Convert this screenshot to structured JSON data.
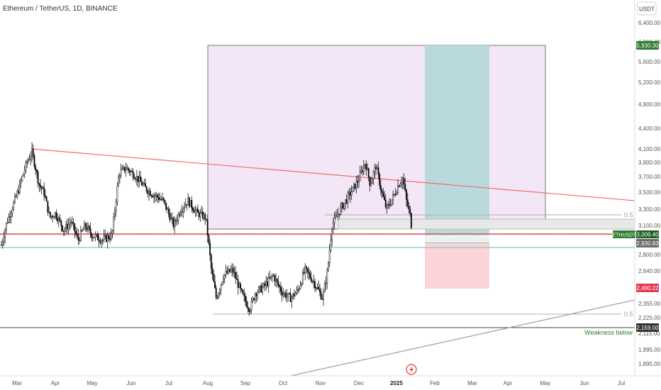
{
  "header": {
    "symbol_title": "Ethereum / TetherUS, 1D, BINANCE"
  },
  "currency_button": "USDT",
  "price_axis": {
    "ticks": [
      "6,400.00",
      "6,000.00",
      "5,600.00",
      "5,200.00",
      "4,800.00",
      "4,400.00",
      "4,100.00",
      "3,900.00",
      "3,700.00",
      "3,500.00",
      "3,300.00",
      "3,100.00",
      "2,800.00",
      "2,640.00",
      "2,355.00",
      "2,225.00",
      "2,115.00",
      "1,995.00",
      "1,895.00"
    ]
  },
  "time_axis": {
    "labels": [
      "Mar",
      "Apr",
      "May",
      "Jun",
      "Jul",
      "Aug",
      "Sep",
      "Oct",
      "Nov",
      "Dec",
      "2025",
      "Feb",
      "Mar",
      "Apr",
      "May",
      "Jun",
      "Jul"
    ]
  },
  "price_badges": {
    "target": "5,930.30",
    "symbol": "ETHUSDT",
    "last": "3,009.40",
    "entry": "2,930.83",
    "stop": "2,490.22",
    "support": "2,159.00"
  },
  "annotations": {
    "fib_upper": "0.5",
    "fib_lower": "0.5",
    "weakness": "Weakness below"
  },
  "colors": {
    "up": "#ffffff",
    "down": "#000000",
    "candle_border": "#1a1a1a",
    "zone_purple": "#f3e6f6",
    "zone_border": "#777777",
    "target_zone": "#b9d9dc",
    "stop_zone": "#fbd3d8",
    "trendline_red": "#f26b6b",
    "level_red": "#e53935",
    "level_teal": "#80cbc4",
    "badge_green": "#2e7d32",
    "badge_red": "#e53950",
    "badge_dark": "#333333",
    "badge_gray": "#6b6b6b"
  },
  "chart_data": {
    "type": "candlestick",
    "title": "Ethereum / TetherUS, 1D, BINANCE",
    "symbol": "ETHUSDT",
    "currency": "USDT",
    "x_range": [
      "2024-02-24",
      "2025-07-31"
    ],
    "y_range": [
      1800,
      6700
    ],
    "monthly_ohlc": [
      {
        "month": "2024-03",
        "open": 3340,
        "high": 4090,
        "low": 3050,
        "close": 3640
      },
      {
        "month": "2024-04",
        "open": 3640,
        "high": 3730,
        "low": 2850,
        "close": 3010
      },
      {
        "month": "2024-05",
        "open": 3010,
        "high": 3950,
        "low": 2820,
        "close": 3760
      },
      {
        "month": "2024-06",
        "open": 3760,
        "high": 3880,
        "low": 3240,
        "close": 3430
      },
      {
        "month": "2024-07",
        "open": 3430,
        "high": 3560,
        "low": 2900,
        "close": 3250
      },
      {
        "month": "2024-08",
        "open": 3250,
        "high": 3470,
        "low": 2120,
        "close": 2520
      },
      {
        "month": "2024-09",
        "open": 2520,
        "high": 2700,
        "low": 2150,
        "close": 2600
      },
      {
        "month": "2024-10",
        "open": 2600,
        "high": 2750,
        "low": 2340,
        "close": 2510
      },
      {
        "month": "2024-11",
        "open": 2510,
        "high": 3690,
        "low": 2360,
        "close": 3600
      },
      {
        "month": "2024-12",
        "open": 3600,
        "high": 4110,
        "low": 3100,
        "close": 3330
      },
      {
        "month": "2025-01",
        "open": 3330,
        "high": 3740,
        "low": 2930,
        "close": 3010
      }
    ],
    "levels": [
      {
        "name": "last price",
        "value": 3009.4
      },
      {
        "name": "entry",
        "value": 2930.83
      },
      {
        "name": "target",
        "value": 5930.3
      },
      {
        "name": "stop",
        "value": 2490.22
      },
      {
        "name": "support",
        "value": 2159.0
      }
    ],
    "zones": [
      {
        "name": "purple zone",
        "from": "2024-08-01",
        "to": "2025-05-01",
        "low": 3009.4,
        "high": 5930.3
      },
      {
        "name": "target zone",
        "from": "2025-01-20",
        "to": "2025-03-15",
        "low": 2930.83,
        "high": 5930.3
      },
      {
        "name": "stop zone",
        "from": "2025-01-20",
        "to": "2025-03-15",
        "low": 2490.22,
        "high": 2930.83
      }
    ],
    "trendlines": [
      {
        "name": "red descending",
        "from": [
          "2024-03-12",
          4090
        ],
        "to": [
          "2025-07-31",
          3420
        ]
      },
      {
        "name": "gray ascending",
        "from": [
          "2024-10-10",
          1800
        ],
        "to": [
          "2025-07-31",
          2370
        ]
      }
    ],
    "grid": false,
    "legend": "none"
  }
}
